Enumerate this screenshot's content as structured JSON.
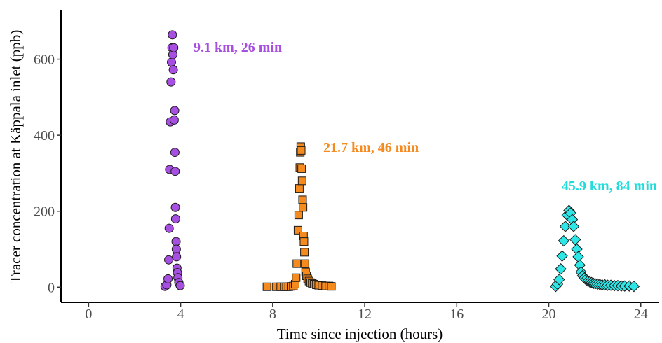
{
  "chart_data": {
    "type": "scatter",
    "title": "",
    "xlabel": "Time since injection (hours)",
    "ylabel": "Tracer concentration at Käppala inlet (ppb)",
    "xlim": [
      -1.2,
      24.8
    ],
    "ylim": [
      -40,
      730
    ],
    "xticks": [
      0,
      4,
      8,
      12,
      16,
      20,
      24
    ],
    "yticks": [
      0,
      200,
      400,
      600
    ],
    "grid": false,
    "legend": "none",
    "series": [
      {
        "marker": "circle",
        "color": "#a64fe0",
        "label": "9.1 km, 26 min",
        "points": [
          [
            3.32,
            2
          ],
          [
            3.4,
            6
          ],
          [
            3.45,
            22
          ],
          [
            3.48,
            72
          ],
          [
            3.5,
            155
          ],
          [
            3.52,
            310
          ],
          [
            3.55,
            435
          ],
          [
            3.58,
            540
          ],
          [
            3.6,
            592
          ],
          [
            3.62,
            630
          ],
          [
            3.64,
            664
          ],
          [
            3.66,
            612
          ],
          [
            3.68,
            572
          ],
          [
            3.7,
            630
          ],
          [
            3.72,
            440
          ],
          [
            3.74,
            465
          ],
          [
            3.75,
            355
          ],
          [
            3.76,
            305
          ],
          [
            3.77,
            210
          ],
          [
            3.78,
            180
          ],
          [
            3.8,
            120
          ],
          [
            3.81,
            100
          ],
          [
            3.82,
            80
          ],
          [
            3.84,
            50
          ],
          [
            3.86,
            38
          ],
          [
            3.88,
            25
          ],
          [
            3.92,
            12
          ],
          [
            3.98,
            4
          ]
        ]
      },
      {
        "marker": "square",
        "color": "#f58a1f",
        "label": "21.7 km, 46 min",
        "points": [
          [
            7.75,
            1
          ],
          [
            8.15,
            1
          ],
          [
            8.35,
            1
          ],
          [
            8.5,
            1
          ],
          [
            8.6,
            1
          ],
          [
            8.7,
            1
          ],
          [
            8.8,
            2
          ],
          [
            8.9,
            3
          ],
          [
            8.98,
            8
          ],
          [
            9.02,
            25
          ],
          [
            9.05,
            62
          ],
          [
            9.1,
            150
          ],
          [
            9.13,
            190
          ],
          [
            9.16,
            260
          ],
          [
            9.18,
            315
          ],
          [
            9.2,
            355
          ],
          [
            9.22,
            370
          ],
          [
            9.24,
            360
          ],
          [
            9.26,
            312
          ],
          [
            9.28,
            280
          ],
          [
            9.3,
            230
          ],
          [
            9.32,
            210
          ],
          [
            9.34,
            135
          ],
          [
            9.36,
            120
          ],
          [
            9.38,
            92
          ],
          [
            9.4,
            62
          ],
          [
            9.43,
            40
          ],
          [
            9.47,
            30
          ],
          [
            9.52,
            22
          ],
          [
            9.58,
            16
          ],
          [
            9.65,
            12
          ],
          [
            9.72,
            10
          ],
          [
            9.8,
            8
          ],
          [
            9.9,
            6
          ],
          [
            10.0,
            5
          ],
          [
            10.15,
            4
          ],
          [
            10.3,
            3
          ],
          [
            10.45,
            3
          ],
          [
            10.55,
            2
          ]
        ]
      },
      {
        "marker": "diamond",
        "color": "#2ee6e6",
        "label": "45.9 km, 84 min",
        "points": [
          [
            20.3,
            2
          ],
          [
            20.38,
            8
          ],
          [
            20.45,
            20
          ],
          [
            20.52,
            48
          ],
          [
            20.58,
            82
          ],
          [
            20.65,
            122
          ],
          [
            20.72,
            160
          ],
          [
            20.8,
            190
          ],
          [
            20.88,
            202
          ],
          [
            20.95,
            195
          ],
          [
            21.02,
            178
          ],
          [
            21.08,
            160
          ],
          [
            21.15,
            125
          ],
          [
            21.22,
            100
          ],
          [
            21.28,
            80
          ],
          [
            21.35,
            58
          ],
          [
            21.4,
            40
          ],
          [
            21.47,
            30
          ],
          [
            21.55,
            24
          ],
          [
            21.62,
            20
          ],
          [
            21.7,
            16
          ],
          [
            21.78,
            14
          ],
          [
            21.86,
            12
          ],
          [
            21.94,
            10
          ],
          [
            22.02,
            9
          ],
          [
            22.12,
            8
          ],
          [
            22.22,
            7
          ],
          [
            22.32,
            6
          ],
          [
            22.44,
            6
          ],
          [
            22.56,
            5
          ],
          [
            22.7,
            5
          ],
          [
            22.85,
            4
          ],
          [
            23.0,
            4
          ],
          [
            23.15,
            3
          ],
          [
            23.3,
            3
          ],
          [
            23.5,
            3
          ],
          [
            23.7,
            2
          ]
        ]
      }
    ]
  }
}
